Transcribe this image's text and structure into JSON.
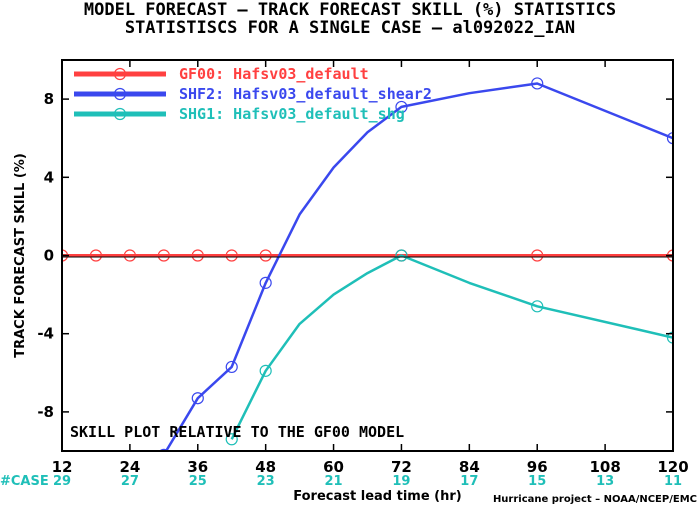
{
  "title_line1": "MODEL FORECAST – TRACK FORECAST SKILL (%) STATISTICS",
  "title_line2": "STATISTISCS FOR A SINGLE CASE – al092022_IAN",
  "note": "SKILL PLOT RELATIVE TO THE GF00 MODEL",
  "case_label": "#CASE",
  "credit": "Hurricane project – NOAA/NCEP/EMC",
  "chart_data": {
    "type": "line",
    "xlabel": "Forecast lead time (hr)",
    "ylabel": "TRACK FORECAST SKILL (%)",
    "xlim": [
      12,
      120
    ],
    "ylim": [
      -10,
      10
    ],
    "xticks": [
      12,
      24,
      36,
      48,
      60,
      72,
      84,
      96,
      108,
      120
    ],
    "yticks": [
      -8,
      -4,
      0,
      4,
      8
    ],
    "case_counts": [
      29,
      27,
      25,
      23,
      21,
      19,
      17,
      15,
      13,
      11
    ],
    "grid": false,
    "legend_position": "top-left",
    "series": [
      {
        "name": "GF00: Hafsv03_default",
        "color": "#ff4040",
        "x": [
          12,
          24,
          36,
          48,
          60,
          72,
          84,
          96,
          108,
          120
        ],
        "y": [
          0,
          0,
          0,
          0,
          0,
          0,
          0,
          0,
          0,
          0
        ],
        "markers": [
          12,
          18,
          24,
          30,
          36,
          42,
          48,
          72,
          96,
          120
        ]
      },
      {
        "name": "SHF2: Hafsv03_default_shear2",
        "color": "#3a48ee",
        "x": [
          30,
          36,
          42,
          48,
          54,
          60,
          66,
          72,
          84,
          96,
          120
        ],
        "y": [
          -10.2,
          -7.3,
          -5.7,
          -1.4,
          2.1,
          4.5,
          6.3,
          7.6,
          8.3,
          8.8,
          6.0
        ],
        "markers": [
          30,
          36,
          42,
          48,
          72,
          96,
          120
        ]
      },
      {
        "name": "SHG1: Hafsv03_default_shg",
        "color": "#1fbfb8",
        "x": [
          42,
          48,
          54,
          60,
          66,
          72,
          84,
          96,
          120
        ],
        "y": [
          -9.4,
          -5.9,
          -3.5,
          -2.0,
          -0.9,
          0,
          -1.4,
          -2.6,
          -4.2
        ],
        "markers": [
          42,
          48,
          72,
          96,
          120
        ]
      }
    ]
  }
}
